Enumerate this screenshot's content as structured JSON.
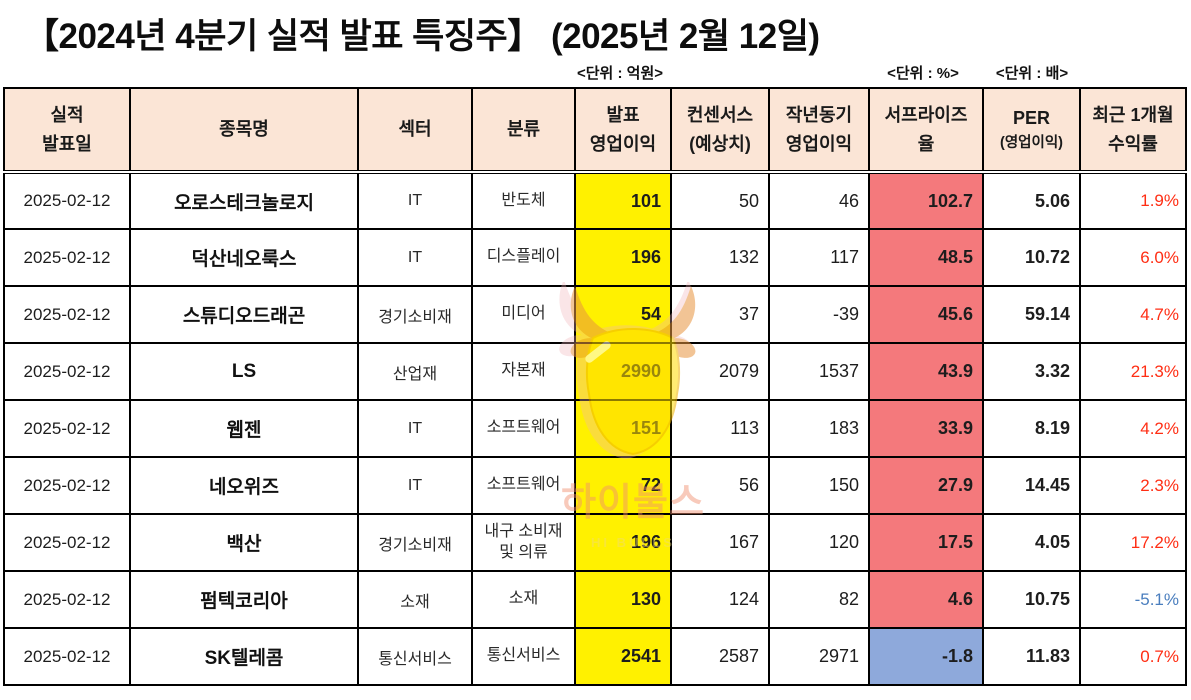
{
  "page": {
    "title": "【2024년 4분기 실적 발표 특징주】 (2025년 2월 12일)",
    "unit_labels": {
      "operating_profit": "<단위 : 억원>",
      "surprise": "<단위 : %>",
      "per": "<단위 : 배>"
    }
  },
  "watermark": {
    "logo": "bull-icon",
    "text_kr": "하이불스",
    "text_en": "HI BULLS"
  },
  "colors": {
    "header_bg": "#FBE5D6",
    "announced_col_bg": "#FFF100",
    "surprise_positive_bg": "#F4797C",
    "surprise_negative_bg": "#8EA9DB",
    "return_up_text": "#FF2E14",
    "return_down_text": "#4A7EBE",
    "border": "#000000"
  },
  "table": {
    "columns": [
      {
        "id": "date",
        "lines": [
          "실적",
          "발표일"
        ]
      },
      {
        "id": "name",
        "lines": [
          "종목명"
        ]
      },
      {
        "id": "sector",
        "lines": [
          "섹터"
        ]
      },
      {
        "id": "category",
        "lines": [
          "분류"
        ]
      },
      {
        "id": "announced",
        "lines": [
          "발표",
          "영업이익"
        ]
      },
      {
        "id": "consensus",
        "lines": [
          "컨센서스",
          "(예상치)"
        ]
      },
      {
        "id": "last_year",
        "lines": [
          "작년동기",
          "영업이익"
        ]
      },
      {
        "id": "surprise",
        "lines": [
          "서프라이즈",
          "율"
        ]
      },
      {
        "id": "per",
        "lines": [
          "PER",
          "(영업이익)"
        ]
      },
      {
        "id": "return_1m",
        "lines": [
          "최근 1개월",
          "수익률"
        ]
      }
    ],
    "rows": [
      {
        "date": "2025-02-12",
        "name": "오로스테크놀로지",
        "sector": "IT",
        "category": "반도체",
        "announced": "101",
        "consensus": "50",
        "last_year": "46",
        "surprise": "102.7",
        "surprise_style": "positive",
        "per": "5.06",
        "return_1m": "1.9%",
        "return_style": "up"
      },
      {
        "date": "2025-02-12",
        "name": "덕산네오룩스",
        "sector": "IT",
        "category": "디스플레이",
        "announced": "196",
        "consensus": "132",
        "last_year": "117",
        "surprise": "48.5",
        "surprise_style": "positive",
        "per": "10.72",
        "return_1m": "6.0%",
        "return_style": "up"
      },
      {
        "date": "2025-02-12",
        "name": "스튜디오드래곤",
        "sector": "경기소비재",
        "category": "미디어",
        "announced": "54",
        "consensus": "37",
        "last_year": "-39",
        "surprise": "45.6",
        "surprise_style": "positive",
        "per": "59.14",
        "return_1m": "4.7%",
        "return_style": "up"
      },
      {
        "date": "2025-02-12",
        "name": "LS",
        "sector": "산업재",
        "category": "자본재",
        "announced": "2990",
        "consensus": "2079",
        "last_year": "1537",
        "surprise": "43.9",
        "surprise_style": "positive",
        "per": "3.32",
        "return_1m": "21.3%",
        "return_style": "up"
      },
      {
        "date": "2025-02-12",
        "name": "웹젠",
        "sector": "IT",
        "category": "소프트웨어",
        "announced": "151",
        "consensus": "113",
        "last_year": "183",
        "surprise": "33.9",
        "surprise_style": "positive",
        "per": "8.19",
        "return_1m": "4.2%",
        "return_style": "up"
      },
      {
        "date": "2025-02-12",
        "name": "네오위즈",
        "sector": "IT",
        "category": "소프트웨어",
        "announced": "72",
        "consensus": "56",
        "last_year": "150",
        "surprise": "27.9",
        "surprise_style": "positive",
        "per": "14.45",
        "return_1m": "2.3%",
        "return_style": "up"
      },
      {
        "date": "2025-02-12",
        "name": "백산",
        "sector": "경기소비재",
        "category": "내구 소비재 및 의류",
        "announced": "196",
        "consensus": "167",
        "last_year": "120",
        "surprise": "17.5",
        "surprise_style": "positive",
        "per": "4.05",
        "return_1m": "17.2%",
        "return_style": "up"
      },
      {
        "date": "2025-02-12",
        "name": "펌텍코리아",
        "sector": "소재",
        "category": "소재",
        "announced": "130",
        "consensus": "124",
        "last_year": "82",
        "surprise": "4.6",
        "surprise_style": "positive",
        "per": "10.75",
        "return_1m": "-5.1%",
        "return_style": "down"
      },
      {
        "date": "2025-02-12",
        "name": "SK텔레콤",
        "sector": "통신서비스",
        "category": "통신서비스",
        "announced": "2541",
        "consensus": "2587",
        "last_year": "2971",
        "surprise": "-1.8",
        "surprise_style": "negative",
        "per": "11.83",
        "return_1m": "0.7%",
        "return_style": "up"
      }
    ]
  }
}
